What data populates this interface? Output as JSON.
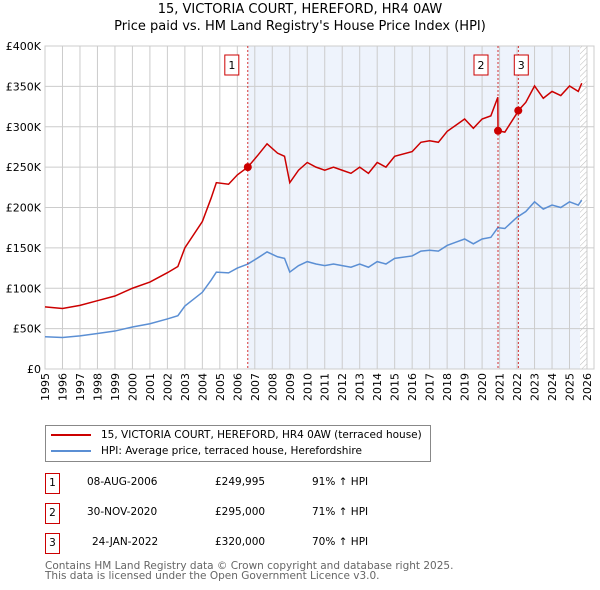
{
  "title": "15, VICTORIA COURT, HEREFORD, HR4 0AW",
  "subtitle": "Price paid vs. HM Land Registry's House Price Index (HPI)",
  "chart_data": {
    "type": "line",
    "ylim": [
      0,
      400000
    ],
    "xlim": [
      1995,
      2026
    ],
    "y_ticks": [
      {
        "v": 0,
        "label": "£0"
      },
      {
        "v": 50000,
        "label": "£50K"
      },
      {
        "v": 100000,
        "label": "£100K"
      },
      {
        "v": 150000,
        "label": "£150K"
      },
      {
        "v": 200000,
        "label": "£200K"
      },
      {
        "v": 250000,
        "label": "£250K"
      },
      {
        "v": 300000,
        "label": "£300K"
      },
      {
        "v": 350000,
        "label": "£350K"
      },
      {
        "v": 400000,
        "label": "£400K"
      }
    ],
    "x_ticks": [
      "1995",
      "1996",
      "1997",
      "1998",
      "1999",
      "2000",
      "2001",
      "2002",
      "2003",
      "2004",
      "2005",
      "2006",
      "2007",
      "2008",
      "2009",
      "2010",
      "2011",
      "2012",
      "2013",
      "2014",
      "2015",
      "2016",
      "2017",
      "2018",
      "2019",
      "2020",
      "2021",
      "2022",
      "2023",
      "2024",
      "2025",
      "2026"
    ],
    "grid": true,
    "colors": {
      "property": "#cc0000",
      "hpi": "#5b8fd4",
      "shade": "#eef3fc"
    },
    "hpi_series": [
      [
        1995,
        40000
      ],
      [
        1996,
        39000
      ],
      [
        1997,
        41000
      ],
      [
        1998,
        44000
      ],
      [
        1999,
        47000
      ],
      [
        2000,
        52000
      ],
      [
        2001,
        56000
      ],
      [
        2002,
        62000
      ],
      [
        2002.6,
        66000
      ],
      [
        2003,
        78000
      ],
      [
        2004,
        95000
      ],
      [
        2004.5,
        110000
      ],
      [
        2004.8,
        120000
      ],
      [
        2005.5,
        119000
      ],
      [
        2006,
        125000
      ],
      [
        2006.6,
        130000
      ],
      [
        2007.2,
        138000
      ],
      [
        2007.7,
        145000
      ],
      [
        2008.3,
        139000
      ],
      [
        2008.7,
        137000
      ],
      [
        2009,
        120000
      ],
      [
        2009.5,
        128000
      ],
      [
        2010,
        133000
      ],
      [
        2010.5,
        130000
      ],
      [
        2011,
        128000
      ],
      [
        2011.5,
        130000
      ],
      [
        2012,
        128000
      ],
      [
        2012.5,
        126000
      ],
      [
        2013,
        130000
      ],
      [
        2013.5,
        126000
      ],
      [
        2014,
        133000
      ],
      [
        2014.5,
        130000
      ],
      [
        2015,
        137000
      ],
      [
        2016,
        140000
      ],
      [
        2016.5,
        146000
      ],
      [
        2017,
        147000
      ],
      [
        2017.5,
        146000
      ],
      [
        2018,
        153000
      ],
      [
        2018.5,
        157000
      ],
      [
        2019,
        161000
      ],
      [
        2019.5,
        155000
      ],
      [
        2020,
        161000
      ],
      [
        2020.5,
        163000
      ],
      [
        2020.9,
        175000
      ],
      [
        2021.3,
        174000
      ],
      [
        2022,
        188000
      ],
      [
        2022.5,
        195000
      ],
      [
        2023,
        207000
      ],
      [
        2023.5,
        198000
      ],
      [
        2024,
        203000
      ],
      [
        2024.5,
        200000
      ],
      [
        2025,
        207000
      ],
      [
        2025.5,
        203000
      ],
      [
        2025.7,
        209000
      ]
    ],
    "sales": [
      {
        "n": "1",
        "date": "08-AUG-2006",
        "x": 2006.6,
        "price": 249995,
        "price_label": "£249,995",
        "hpi_label": "91% ↑ HPI"
      },
      {
        "n": "2",
        "date": "30-NOV-2020",
        "x": 2020.91,
        "price": 295000,
        "price_label": "£295,000",
        "hpi_label": "71% ↑ HPI"
      },
      {
        "n": "3",
        "date": "24-JAN-2022",
        "x": 2022.07,
        "price": 320000,
        "price_label": "£320,000",
        "hpi_label": "70% ↑ HPI"
      }
    ],
    "legend": {
      "position": "below",
      "property": "15, VICTORIA COURT, HEREFORD, HR4 0AW (terraced house)",
      "hpi": "HPI: Average price, terraced house, Herefordshire"
    }
  },
  "footer": {
    "line1": "Contains HM Land Registry data © Crown copyright and database right 2025.",
    "line2": "This data is licensed under the Open Government Licence v3.0."
  }
}
